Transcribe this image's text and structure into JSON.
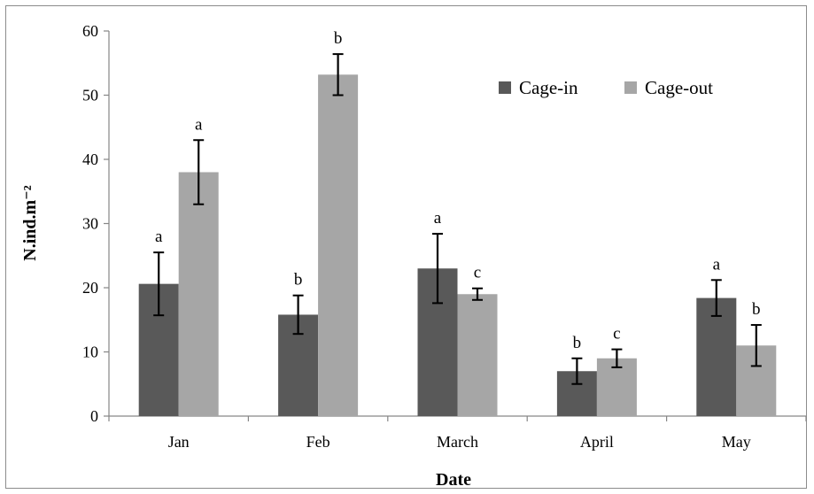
{
  "chart_data": {
    "type": "bar",
    "title": "",
    "xlabel": "Date",
    "ylabel": "N.ind.m⁻²",
    "ylim": [
      0,
      60
    ],
    "yticks": [
      "0",
      "10",
      "20",
      "30",
      "40",
      "50",
      "60"
    ],
    "grid": false,
    "legend_position": "top-right",
    "categories": [
      "Jan",
      "Feb",
      "March",
      "April",
      "May"
    ],
    "series": [
      {
        "name": "Cage-in",
        "color": "#595959",
        "values": [
          20.6,
          15.8,
          23.0,
          7.0,
          18.4
        ],
        "errors": [
          4.9,
          3.0,
          5.4,
          2.0,
          2.8
        ],
        "letters": [
          "a",
          "b",
          "a",
          "b",
          "a"
        ]
      },
      {
        "name": "Cage-out",
        "color": "#a6a6a6",
        "values": [
          38.0,
          53.2,
          19.0,
          9.0,
          11.0
        ],
        "errors": [
          5.0,
          3.2,
          0.9,
          1.4,
          3.2
        ],
        "letters": [
          "a",
          "b",
          "c",
          "c",
          "b"
        ]
      }
    ]
  }
}
